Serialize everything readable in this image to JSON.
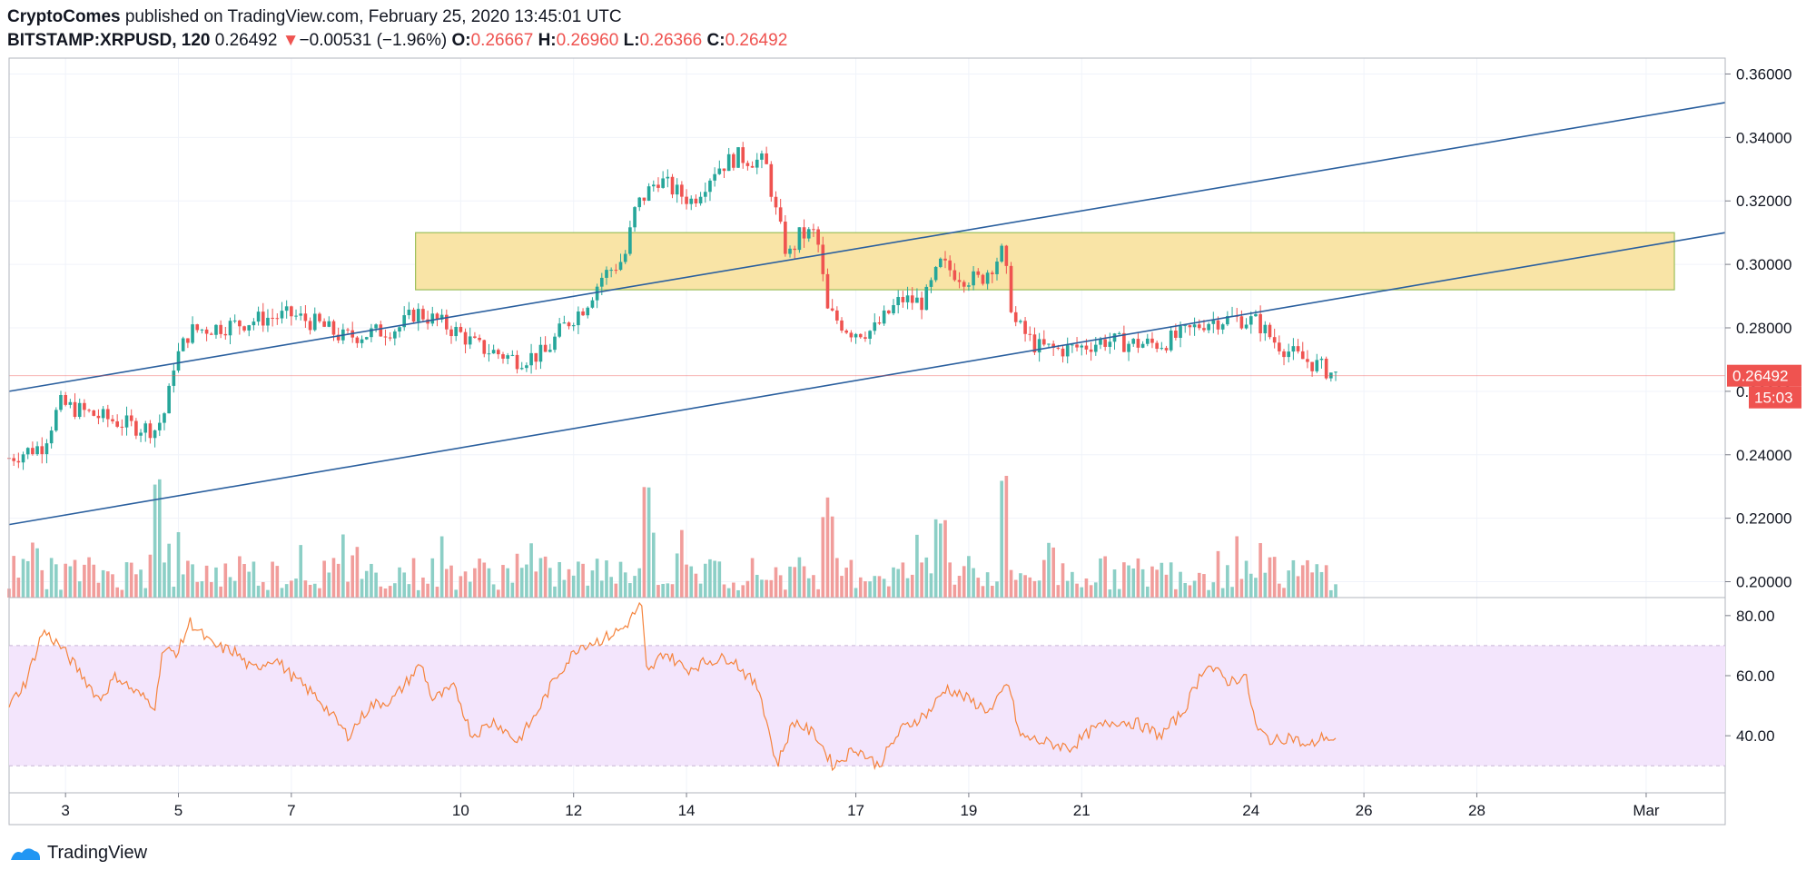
{
  "header": {
    "author": "CryptoComes",
    "published_text": "published on TradingView.com, February 25, 2020 13:45:01 UTC",
    "symbol": "BITSTAMP:XRPUSD, 120",
    "last": "0.26492",
    "arrow": "▼",
    "change": "−0.00531 (−1.96%)",
    "o_label": "O:",
    "o_value": "0.26667",
    "h_label": "H:",
    "h_value": "0.26960",
    "l_label": "L:",
    "l_value": "0.26366",
    "c_label": "C:",
    "c_value": "0.26492"
  },
  "footer": {
    "brand": "TradingView"
  },
  "colors": {
    "up": "#26a69a",
    "down": "#ef5350",
    "vol_up": "#8ccfc6",
    "vol_down": "#f19d9b",
    "trend": "#2a5f9e",
    "zone_fill": "#f9e4a6",
    "zone_stroke": "#9cbf5a",
    "rsi_line": "#f5833c",
    "rsi_band": "#f3e5fc",
    "price_tag": "#ef5350"
  },
  "chart_data": [
    {
      "type": "candlestick",
      "title": "",
      "x_ticks": [
        "3",
        "5",
        "7",
        "10",
        "12",
        "14",
        "17",
        "19",
        "21",
        "24",
        "26",
        "28",
        "Mar"
      ],
      "y_ticks": [
        "0.20000",
        "0.22000",
        "0.24000",
        "0.26000",
        "0.28000",
        "0.30000",
        "0.32000",
        "0.34000",
        "0.36000"
      ],
      "ylim": [
        0.195,
        0.365
      ],
      "anchors": [
        [
          2.0,
          0.239
        ],
        [
          2.6,
          0.243
        ],
        [
          2.9,
          0.256
        ],
        [
          3.6,
          0.252
        ],
        [
          4.2,
          0.249
        ],
        [
          4.6,
          0.248
        ],
        [
          4.8,
          0.255
        ],
        [
          4.9,
          0.268
        ],
        [
          5.2,
          0.279
        ],
        [
          5.6,
          0.28
        ],
        [
          6.0,
          0.281
        ],
        [
          6.5,
          0.283
        ],
        [
          7.0,
          0.284
        ],
        [
          7.5,
          0.281
        ],
        [
          7.9,
          0.277
        ],
        [
          8.3,
          0.278
        ],
        [
          8.9,
          0.28
        ],
        [
          9.2,
          0.285
        ],
        [
          9.6,
          0.282
        ],
        [
          10.0,
          0.278
        ],
        [
          10.3,
          0.274
        ],
        [
          11.0,
          0.27
        ],
        [
          11.5,
          0.272
        ],
        [
          11.8,
          0.28
        ],
        [
          12.2,
          0.287
        ],
        [
          12.5,
          0.296
        ],
        [
          12.9,
          0.302
        ],
        [
          13.1,
          0.318
        ],
        [
          13.5,
          0.327
        ],
        [
          13.8,
          0.323
        ],
        [
          14.1,
          0.32
        ],
        [
          14.5,
          0.33
        ],
        [
          14.9,
          0.334
        ],
        [
          15.4,
          0.332
        ],
        [
          15.6,
          0.315
        ],
        [
          15.8,
          0.302
        ],
        [
          16.0,
          0.309
        ],
        [
          16.3,
          0.31
        ],
        [
          16.5,
          0.285
        ],
        [
          16.7,
          0.282
        ],
        [
          16.9,
          0.279
        ],
        [
          17.3,
          0.279
        ],
        [
          17.8,
          0.289
        ],
        [
          18.2,
          0.288
        ],
        [
          18.5,
          0.3
        ],
        [
          18.9,
          0.296
        ],
        [
          19.2,
          0.295
        ],
        [
          19.6,
          0.304
        ],
        [
          19.8,
          0.282
        ],
        [
          20.2,
          0.274
        ],
        [
          20.6,
          0.273
        ],
        [
          21.0,
          0.274
        ],
        [
          21.4,
          0.276
        ],
        [
          21.9,
          0.275
        ],
        [
          22.4,
          0.275
        ],
        [
          22.8,
          0.278
        ],
        [
          23.2,
          0.282
        ],
        [
          23.7,
          0.283
        ],
        [
          24.1,
          0.282
        ],
        [
          24.4,
          0.276
        ],
        [
          24.8,
          0.271
        ],
        [
          25.2,
          0.268
        ],
        [
          25.5,
          0.265
        ]
      ],
      "volume_peaks": [
        [
          4.6,
          "high"
        ],
        [
          13.3,
          "high"
        ],
        [
          19.6,
          "high"
        ],
        [
          18.5,
          "mid"
        ],
        [
          16.5,
          "mid"
        ]
      ],
      "trendlines": [
        {
          "from": [
            2.0,
            0.26
          ],
          "to": [
            32.4,
            0.351
          ]
        },
        {
          "from": [
            2.0,
            0.218
          ],
          "to": [
            32.4,
            0.31
          ]
        }
      ],
      "zone": {
        "x0": 9.2,
        "x1": 31.5,
        "y0": 0.292,
        "y1": 0.31
      },
      "current_price": {
        "value": "0.26492",
        "timer": "15:03"
      }
    },
    {
      "type": "line",
      "title": "",
      "y_ticks": [
        "40.00",
        "60.00",
        "80.00"
      ],
      "ylim": [
        21,
        86
      ],
      "band": [
        30,
        70
      ],
      "anchors": [
        [
          2.0,
          50
        ],
        [
          2.3,
          58
        ],
        [
          2.6,
          75
        ],
        [
          2.9,
          70
        ],
        [
          3.3,
          60
        ],
        [
          3.6,
          52
        ],
        [
          3.9,
          60
        ],
        [
          4.2,
          55
        ],
        [
          4.6,
          50
        ],
        [
          4.7,
          68
        ],
        [
          5.0,
          68
        ],
        [
          5.2,
          78
        ],
        [
          5.6,
          70
        ],
        [
          6.0,
          68
        ],
        [
          6.3,
          62
        ],
        [
          6.7,
          66
        ],
        [
          7.0,
          60
        ],
        [
          7.5,
          52
        ],
        [
          8.0,
          40
        ],
        [
          8.4,
          50
        ],
        [
          8.8,
          52
        ],
        [
          9.3,
          64
        ],
        [
          9.5,
          52
        ],
        [
          9.9,
          56
        ],
        [
          10.2,
          40
        ],
        [
          10.6,
          45
        ],
        [
          11.0,
          38
        ],
        [
          11.3,
          46
        ],
        [
          11.7,
          60
        ],
        [
          12.1,
          70
        ],
        [
          12.5,
          72
        ],
        [
          12.9,
          76
        ],
        [
          13.2,
          84
        ],
        [
          13.3,
          60
        ],
        [
          13.6,
          68
        ],
        [
          14.0,
          62
        ],
        [
          14.4,
          65
        ],
        [
          14.8,
          66
        ],
        [
          15.3,
          55
        ],
        [
          15.6,
          30
        ],
        [
          15.9,
          45
        ],
        [
          16.3,
          40
        ],
        [
          16.6,
          30
        ],
        [
          17.0,
          36
        ],
        [
          17.4,
          30
        ],
        [
          17.8,
          42
        ],
        [
          18.3,
          48
        ],
        [
          18.6,
          56
        ],
        [
          19.0,
          52
        ],
        [
          19.4,
          48
        ],
        [
          19.7,
          58
        ],
        [
          19.9,
          40
        ],
        [
          20.3,
          38
        ],
        [
          20.8,
          36
        ],
        [
          21.2,
          42
        ],
        [
          21.6,
          45
        ],
        [
          22.0,
          44
        ],
        [
          22.4,
          40
        ],
        [
          22.8,
          48
        ],
        [
          23.2,
          64
        ],
        [
          23.6,
          58
        ],
        [
          23.9,
          60
        ],
        [
          24.1,
          42
        ],
        [
          24.4,
          38
        ],
        [
          24.7,
          40
        ],
        [
          25.0,
          36
        ],
        [
          25.3,
          40
        ],
        [
          25.5,
          38
        ]
      ]
    }
  ]
}
